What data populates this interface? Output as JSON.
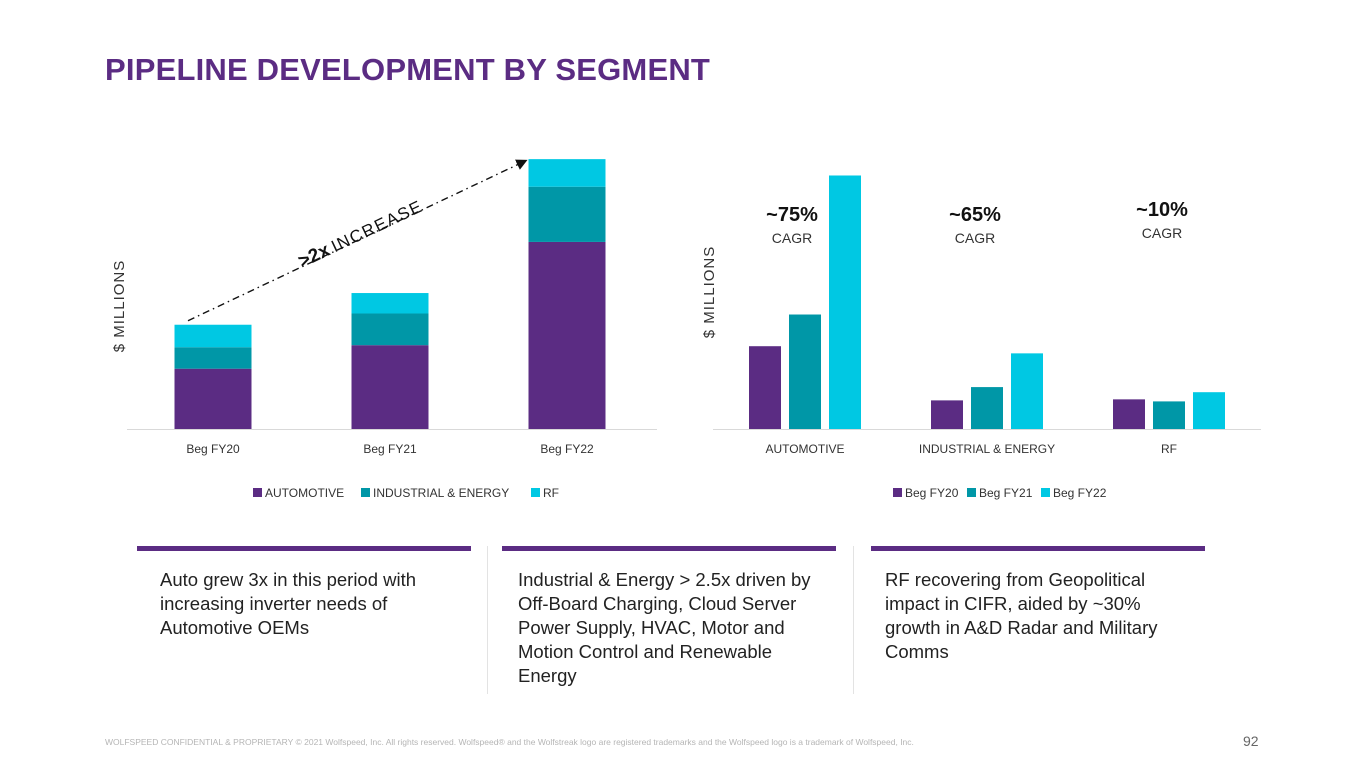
{
  "page": {
    "title": "PIPELINE DEVELOPMENT BY SEGMENT",
    "footer": "WOLFSPEED CONFIDENTIAL & PROPRIETARY © 2021 Wolfspeed, Inc. All rights reserved. Wolfspeed® and the Wolfstreak logo are registered trademarks and the Wolfspeed logo is a trademark of Wolfspeed, Inc.",
    "page_number": "92"
  },
  "colors": {
    "brand_purple": "#5b2c83",
    "automotive": "#5b2c83",
    "industrial_energy": "#0097a7",
    "rf": "#00c8e3",
    "fy20": "#5b2c83",
    "fy21": "#0097a7",
    "fy22": "#00c8e3",
    "axis": "#d9d9d9"
  },
  "chart_data": [
    {
      "type": "bar",
      "stacked": true,
      "title": "",
      "xlabel": "",
      "ylabel": "$ MILLIONS",
      "units_note": "no y-axis ticks shown; values are relative estimates on a shared scale",
      "categories": [
        "Beg FY20",
        "Beg FY21",
        "Beg FY22"
      ],
      "series": [
        {
          "name": "AUTOMOTIVE",
          "color": "#5b2c83",
          "values": [
            59,
            82,
            183
          ]
        },
        {
          "name": "INDUSTRIAL & ENERGY",
          "color": "#0097a7",
          "values": [
            21,
            31,
            54
          ]
        },
        {
          "name": "RF",
          "color": "#00c8e3",
          "values": [
            22,
            20,
            27
          ]
        }
      ],
      "ylim": [
        0,
        270
      ],
      "grid": false,
      "legend": "bottom-center",
      "annotation": {
        "bold": ">2x",
        "text": "INCREASE",
        "from": "Beg FY20",
        "to": "Beg FY22",
        "style": "dash-dot arrow"
      }
    },
    {
      "type": "bar",
      "stacked": false,
      "title": "",
      "xlabel": "",
      "ylabel": "$ MILLIONS",
      "units_note": "no y-axis ticks shown; values are relative estimates on a shared scale",
      "categories": [
        "AUTOMOTIVE",
        "INDUSTRIAL & ENERGY",
        "RF"
      ],
      "series": [
        {
          "name": "Beg FY20",
          "color": "#5b2c83",
          "values": [
            81,
            28,
            29
          ]
        },
        {
          "name": "Beg FY21",
          "color": "#0097a7",
          "values": [
            112,
            41,
            27
          ]
        },
        {
          "name": "Beg FY22",
          "color": "#00c8e3",
          "values": [
            248,
            74,
            36
          ]
        }
      ],
      "ylim": [
        0,
        270
      ],
      "grid": false,
      "legend": "bottom-center",
      "annotations": [
        {
          "category": "AUTOMOTIVE",
          "value": "~75%",
          "label": "CAGR"
        },
        {
          "category": "INDUSTRIAL & ENERGY",
          "value": "~65%",
          "label": "CAGR"
        },
        {
          "category": "RF",
          "value": "~10%",
          "label": "CAGR"
        }
      ]
    }
  ],
  "cards": [
    {
      "text": "Auto grew 3x in this period with increasing inverter needs of Automotive OEMs"
    },
    {
      "text": "Industrial & Energy > 2.5x driven by Off-Board Charging, Cloud Server Power Supply, HVAC, Motor and Motion Control and Renewable Energy"
    },
    {
      "text": "RF recovering from Geopolitical impact in CIFR, aided by ~30% growth in A&D Radar and Military Comms"
    }
  ]
}
